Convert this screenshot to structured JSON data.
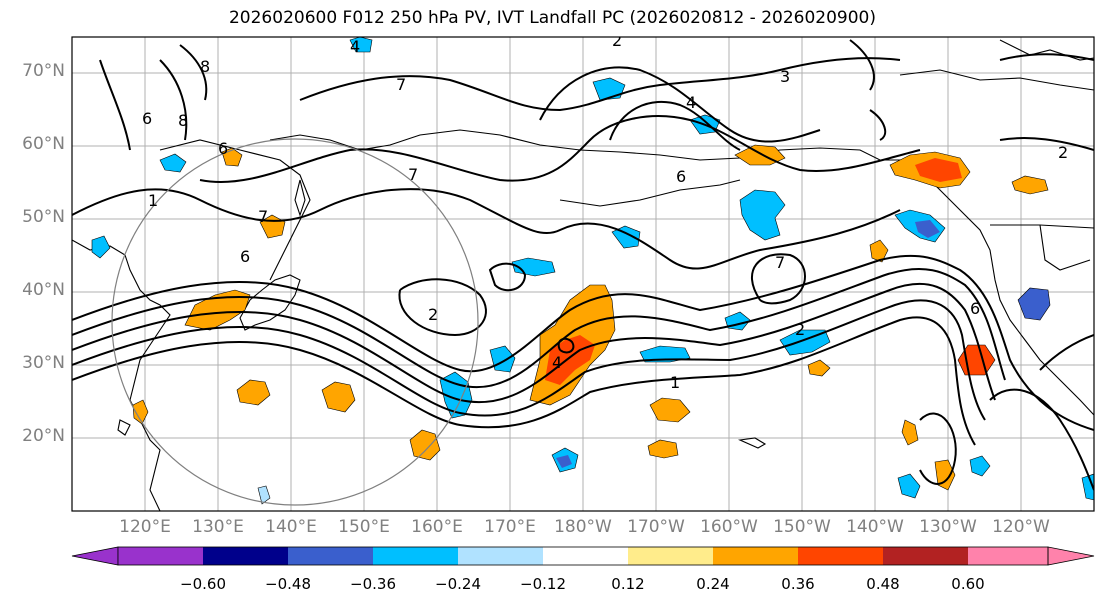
{
  "title": "2026020600 F012 250 hPa PV, IVT Landfall PC (2026020812 - 2026020900)",
  "map": {
    "lat_labels": [
      "70°N",
      "60°N",
      "50°N",
      "40°N",
      "30°N",
      "20°N"
    ],
    "lon_labels": [
      "120°E",
      "130°E",
      "140°E",
      "150°E",
      "160°E",
      "170°E",
      "180°W",
      "170°W",
      "160°W",
      "150°W",
      "140°W",
      "130°W",
      "120°W"
    ],
    "contour_labels": [
      "1",
      "2",
      "3",
      "4",
      "6",
      "7",
      "8"
    ]
  },
  "colorbar": {
    "colors": [
      "#9932cc",
      "#00008b",
      "#3a5fcd",
      "#00bfff",
      "#b0e2ff",
      "#ffffff",
      "#ffec8b",
      "#ffa500",
      "#ff4500",
      "#b22222",
      "#ff82ab"
    ],
    "tick_labels": [
      "−0.60",
      "−0.48",
      "−0.36",
      "−0.24",
      "−0.12",
      "0.12",
      "0.24",
      "0.36",
      "0.48",
      "0.60"
    ]
  }
}
